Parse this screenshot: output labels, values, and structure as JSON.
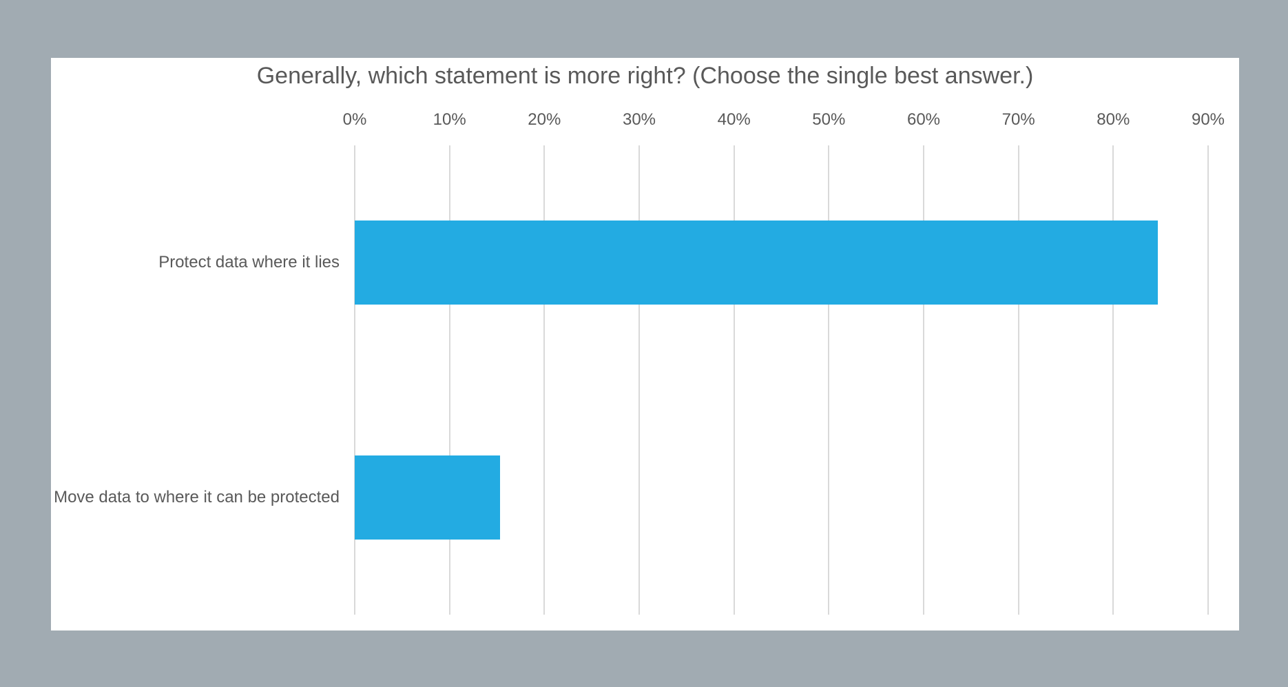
{
  "chart_data": {
    "type": "bar",
    "orientation": "horizontal",
    "title": "Generally, which statement is more right? (Choose the single best answer.)",
    "categories": [
      "Protect data where it lies",
      "Move data to where it can be protected"
    ],
    "values": [
      84.7,
      15.3
    ],
    "value_unit": "percent",
    "xlabel": "",
    "ylabel": "",
    "xlim": [
      0,
      90
    ],
    "x_ticks": [
      0,
      10,
      20,
      30,
      40,
      50,
      60,
      70,
      80,
      90
    ],
    "x_tick_labels": [
      "0%",
      "10%",
      "20%",
      "30%",
      "40%",
      "50%",
      "60%",
      "70%",
      "80%",
      "90%"
    ],
    "grid": true,
    "legend": false,
    "data_labels": false,
    "colors": {
      "bar": "#23abe2",
      "gridline": "#d9d9d9",
      "text": "#595959",
      "plot_background": "#ffffff",
      "page_background": "#a1abb2"
    }
  }
}
